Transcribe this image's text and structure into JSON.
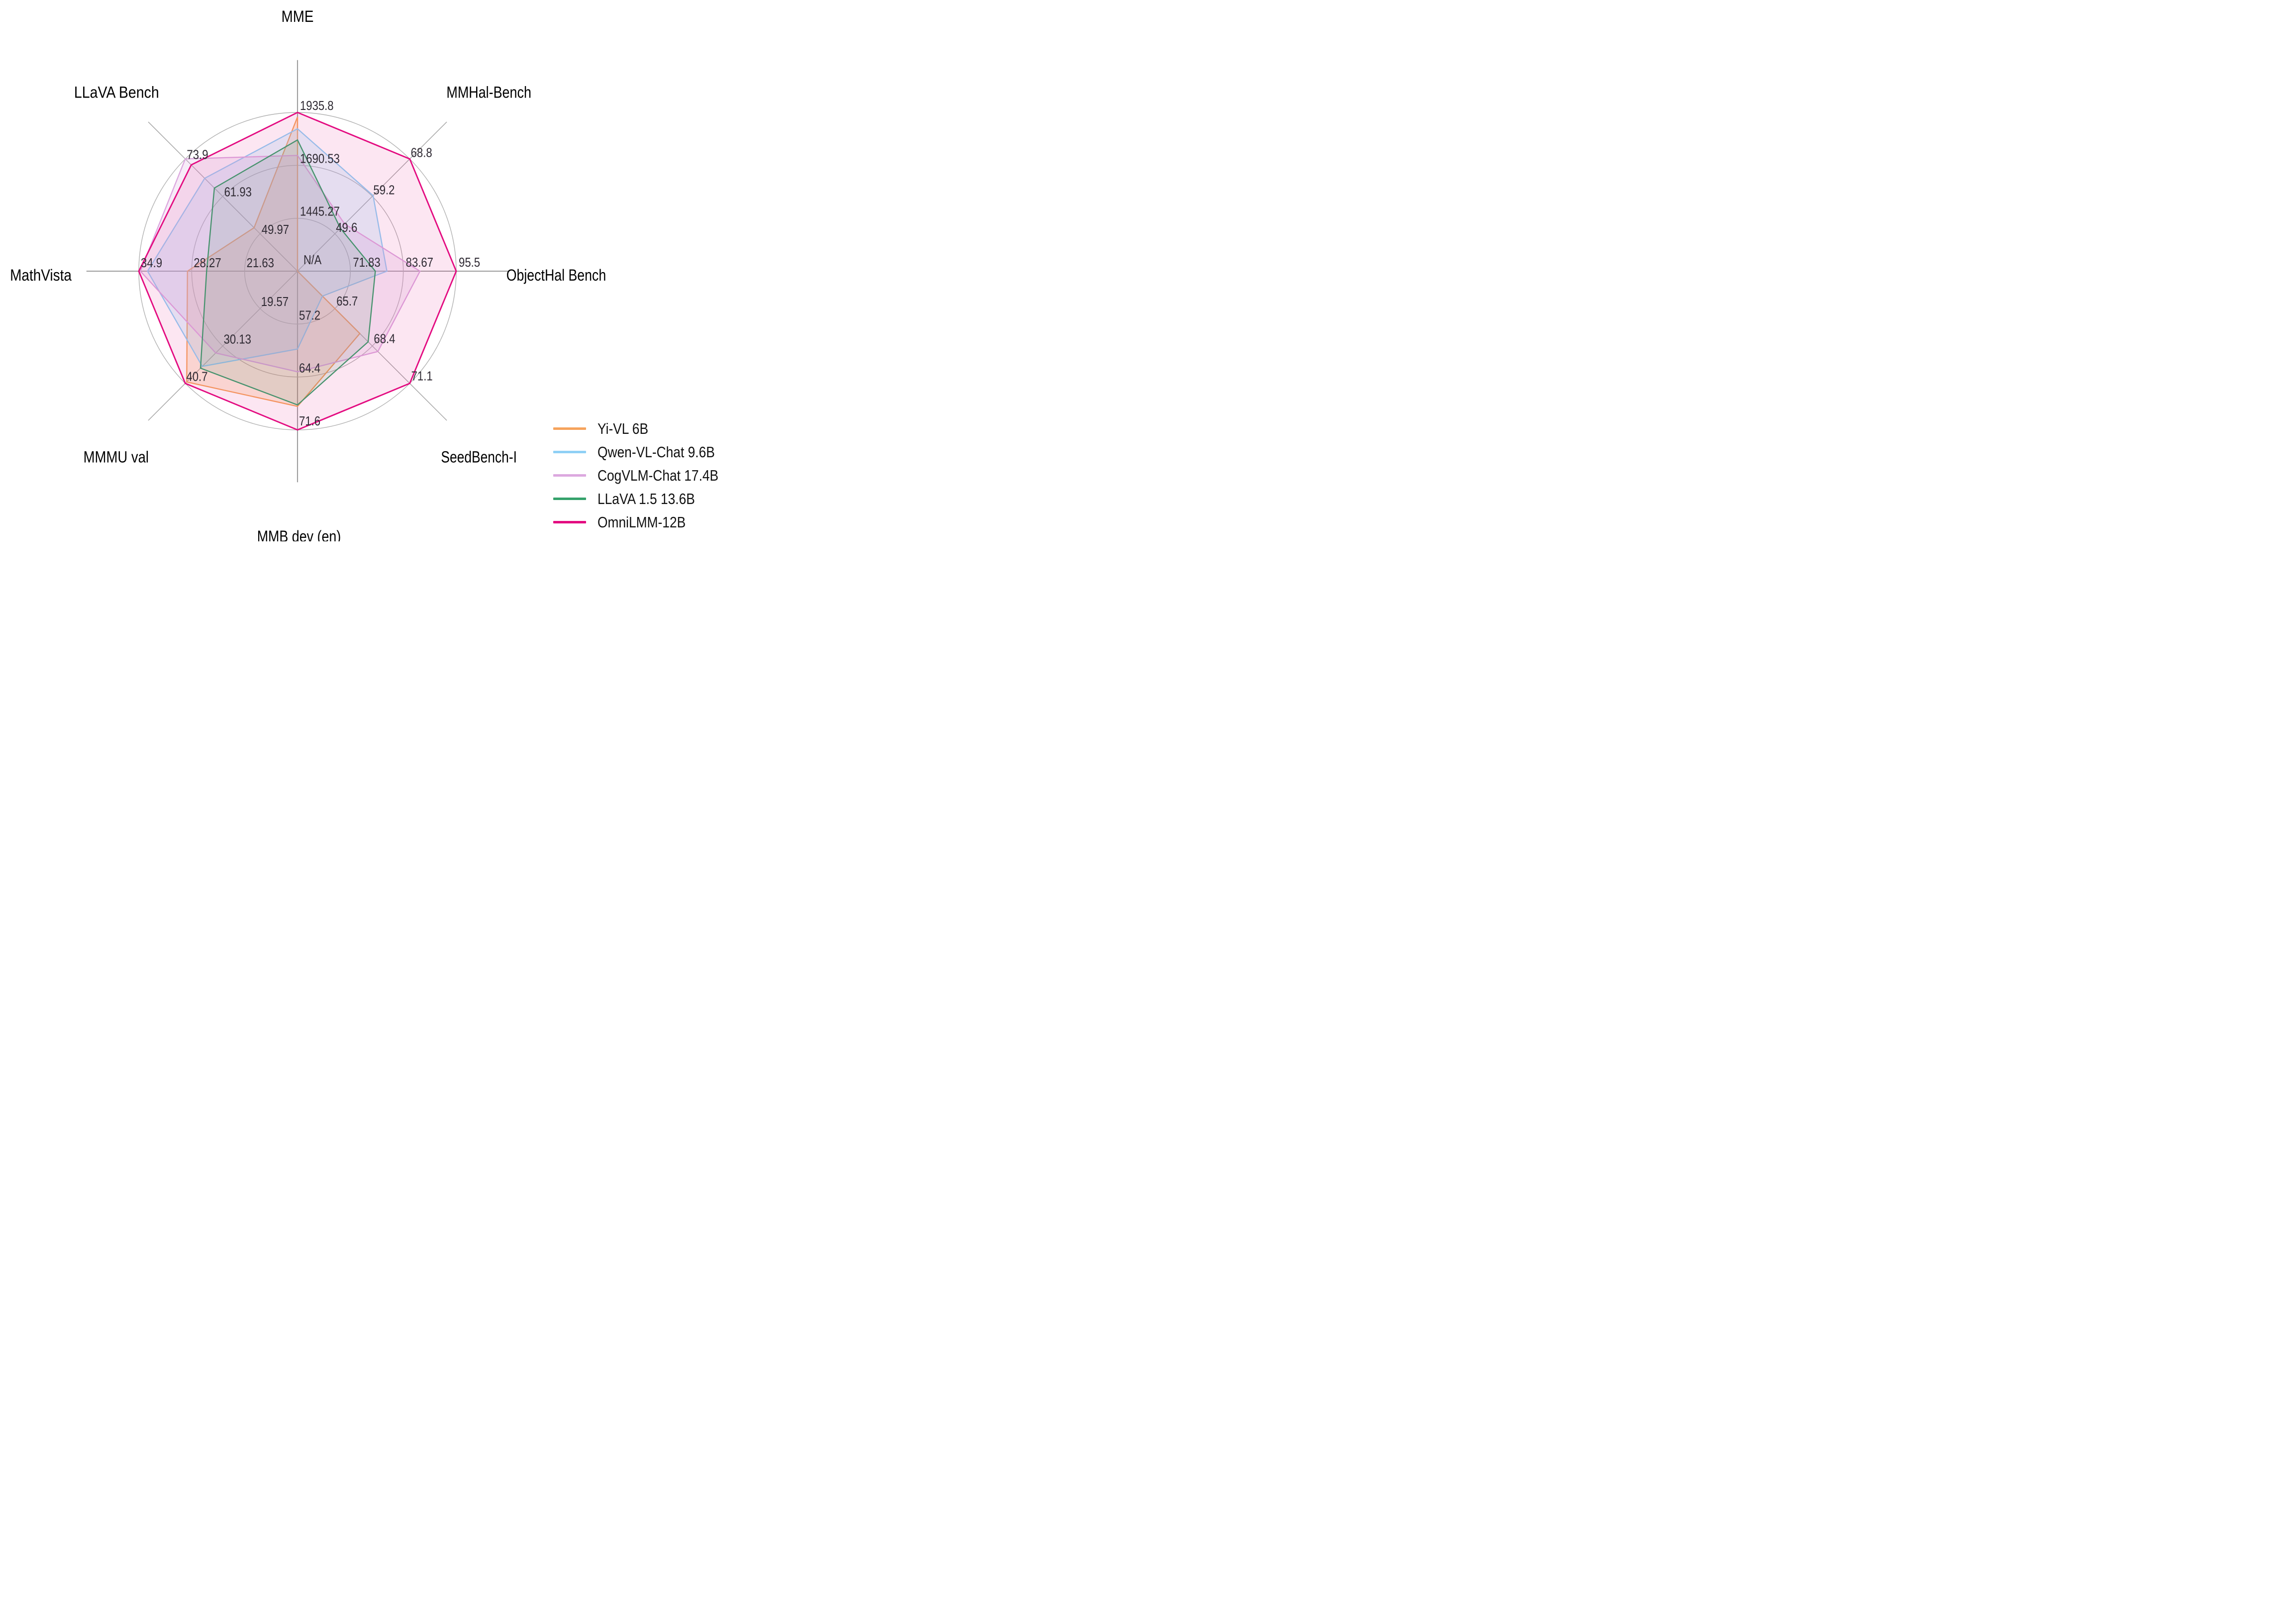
{
  "chart_data": {
    "type": "radar",
    "title": "",
    "center_label": "N/A",
    "grid": {
      "rings": 3,
      "ring_color": "#b2b2b2",
      "spoke_color": "#a5a5a5",
      "legend_position": "lower right"
    },
    "axes": [
      {
        "label": "MME",
        "min": 1200,
        "max": 1935.8,
        "ticks": [
          "1445.27",
          "1690.53",
          "1935.8"
        ]
      },
      {
        "label": "MMHal-Bench",
        "min": 40,
        "max": 68.8,
        "ticks": [
          "49.6",
          "59.2",
          "68.8"
        ]
      },
      {
        "label": "ObjectHal Bench",
        "min": 60,
        "max": 95.5,
        "ticks": [
          "71.83",
          "83.67",
          "95.5"
        ]
      },
      {
        "label": "SeedBench-I",
        "min": 63,
        "max": 71.1,
        "ticks": [
          "65.7",
          "68.4",
          "71.1"
        ]
      },
      {
        "label": "MMB dev (en)",
        "min": 50,
        "max": 71.6,
        "ticks": [
          "57.2",
          "64.4",
          "71.6"
        ]
      },
      {
        "label": "MMMU val",
        "min": 9,
        "max": 40.7,
        "ticks": [
          "19.57",
          "30.13",
          "40.7"
        ]
      },
      {
        "label": "MathVista",
        "min": 15,
        "max": 34.9,
        "ticks": [
          "21.63",
          "28.27",
          "34.9"
        ]
      },
      {
        "label": "LLaVA Bench",
        "min": 38,
        "max": 73.9,
        "ticks": [
          "49.97",
          "61.93",
          "73.9"
        ]
      }
    ],
    "series": [
      {
        "name": "Yi-VL 6B",
        "color": "#F6A35C",
        "values": [
          1915.1,
          null,
          null,
          67.5,
          68.4,
          40.3,
          28.8,
          51.9
        ]
      },
      {
        "name": "Qwen-VL-Chat 9.6B",
        "color": "#8FD0F5",
        "values": [
          1860.0,
          59.4,
          80.0,
          64.8,
          60.6,
          35.9,
          33.8,
          67.7
        ]
      },
      {
        "name": "CogVLM-Chat 17.4B",
        "color": "#DCA8DF",
        "values": [
          1736.6,
          52.1,
          87.4,
          68.8,
          63.7,
          32.1,
          34.7,
          73.9
        ]
      },
      {
        "name": "LLaVA 1.5 13.6B",
        "color": "#35A26B",
        "values": [
          1808.4,
          51.0,
          77.4,
          68.1,
          68.2,
          36.4,
          26.4,
          64.6
        ]
      },
      {
        "name": "OmniLMM-12B",
        "color": "#E30B80",
        "values": [
          1935.8,
          68.8,
          95.5,
          71.1,
          71.6,
          40.7,
          34.9,
          72.0
        ]
      }
    ]
  }
}
